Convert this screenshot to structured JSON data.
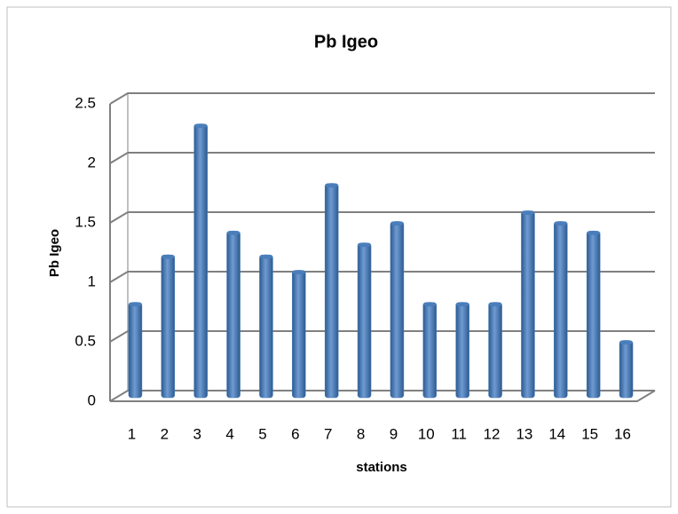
{
  "chart_data": {
    "type": "bar",
    "title": "Pb Igeo",
    "x_label": "stations",
    "y_label": "Pb Igeo",
    "categories": [
      "1",
      "2",
      "3",
      "4",
      "5",
      "6",
      "7",
      "8",
      "9",
      "10",
      "11",
      "12",
      "13",
      "14",
      "15",
      "16"
    ],
    "values": [
      0.8,
      1.2,
      2.3,
      1.4,
      1.2,
      1.07,
      1.8,
      1.3,
      1.48,
      0.8,
      0.8,
      0.8,
      1.57,
      1.48,
      1.4,
      0.48
    ],
    "color": "#4a7ebb",
    "ylim": [
      0,
      2.5
    ],
    "yticks": [
      0,
      0.5,
      1,
      1.5,
      2,
      2.5
    ],
    "grid": true
  }
}
